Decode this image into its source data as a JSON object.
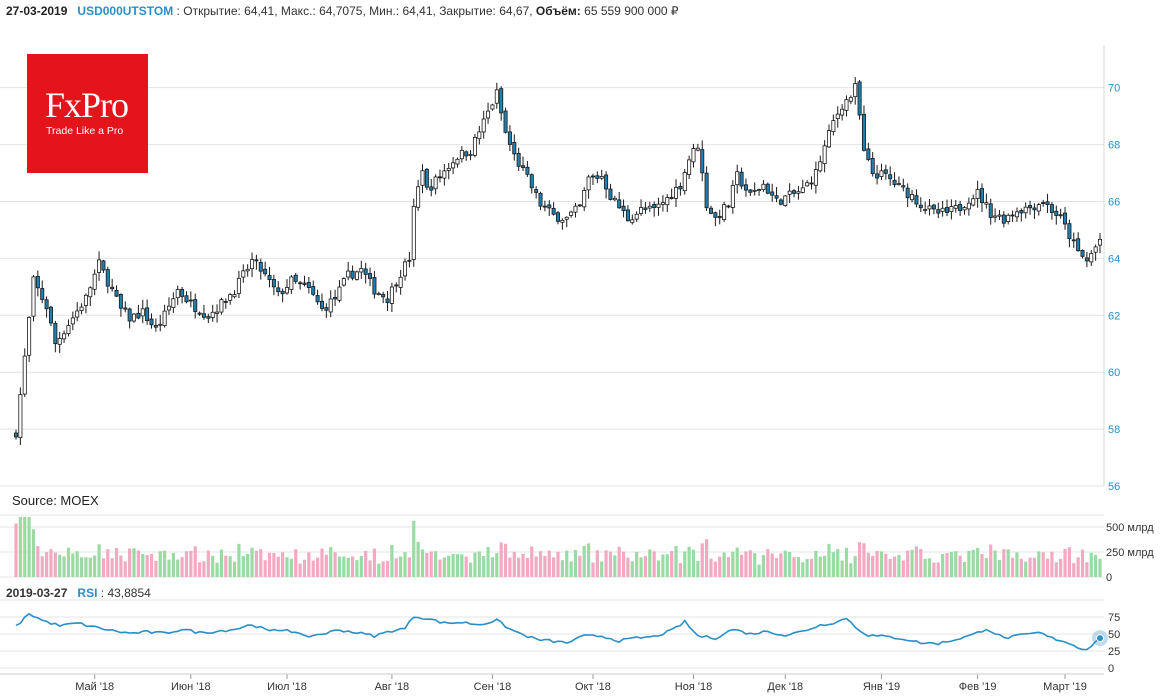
{
  "header": {
    "date": "27-03-2019",
    "ticker": "USD000UTSTOM",
    "sep": " : ",
    "open_label": "Открытие:",
    "open": "64,41",
    "high_label": "Макс.:",
    "high": "64,7075",
    "low_label": "Мин.:",
    "low": "64,41",
    "close_label": "Закрытие:",
    "close": "64,67",
    "volume_label": "Объём:",
    "volume": "65 559 900 000 ₽"
  },
  "logo": {
    "brand": "FxPro",
    "tagline": "Trade Like a Pro"
  },
  "source": "Source: MOEX",
  "rsi_header": {
    "date": "2019-03-27",
    "label": "RSI",
    "value": "43,8854"
  },
  "colors": {
    "up": "#ffffff",
    "down": "#1f7fb0",
    "vol_up": "#9adba4",
    "vol_down": "#f2a9c1",
    "rsi": "#2a8fc7",
    "grid": "#e4e4e4"
  },
  "chart_data": {
    "type": "candlestick",
    "price_axis": {
      "ylim": [
        56,
        71.5
      ],
      "ticks": [
        "56",
        "58",
        "60",
        "62",
        "64",
        "66",
        "68",
        "70"
      ]
    },
    "volume_axis": {
      "ylim": [
        0,
        620
      ],
      "ticks": [
        "0",
        "250 млрд",
        "500 млрд"
      ],
      "tick_values": [
        0,
        250,
        500
      ]
    },
    "rsi_axis": {
      "ylim": [
        0,
        100
      ],
      "ticks": [
        "0",
        "25",
        "50",
        "75"
      ],
      "tick_values": [
        0,
        25,
        50,
        75
      ]
    },
    "x_axis": {
      "n_days": 249,
      "labels": [
        "Май '18",
        "Июн '18",
        "Июл '18",
        "Авг '18",
        "Сен '18",
        "Окт '18",
        "Ноя '18",
        "Дек '18",
        "Янв '19",
        "Фев '19",
        "Март '19"
      ],
      "label_index": [
        18,
        40,
        62,
        86,
        109,
        132,
        155,
        176,
        198,
        220,
        240
      ]
    },
    "close_anchors": [
      [
        0,
        57.9
      ],
      [
        2,
        60.5
      ],
      [
        4,
        63.2
      ],
      [
        7,
        62.3
      ],
      [
        9,
        61.0
      ],
      [
        12,
        61.7
      ],
      [
        16,
        62.6
      ],
      [
        19,
        63.8
      ],
      [
        21,
        63.2
      ],
      [
        24,
        62.2
      ],
      [
        26,
        61.9
      ],
      [
        29,
        62.1
      ],
      [
        32,
        61.5
      ],
      [
        34,
        62.0
      ],
      [
        37,
        62.9
      ],
      [
        40,
        62.4
      ],
      [
        44,
        62.0
      ],
      [
        47,
        62.4
      ],
      [
        50,
        62.9
      ],
      [
        54,
        63.9
      ],
      [
        56,
        63.6
      ],
      [
        60,
        62.7
      ],
      [
        63,
        63.2
      ],
      [
        67,
        62.9
      ],
      [
        70,
        62.2
      ],
      [
        73,
        62.6
      ],
      [
        76,
        63.4
      ],
      [
        79,
        63.6
      ],
      [
        82,
        62.9
      ],
      [
        85,
        62.6
      ],
      [
        88,
        63.5
      ],
      [
        90,
        64.0
      ],
      [
        91,
        65.7
      ],
      [
        93,
        67.2
      ],
      [
        94,
        66.4
      ],
      [
        97,
        66.9
      ],
      [
        101,
        67.6
      ],
      [
        104,
        67.8
      ],
      [
        107,
        68.8
      ],
      [
        110,
        69.8
      ],
      [
        112,
        68.4
      ],
      [
        114,
        67.6
      ],
      [
        117,
        66.8
      ],
      [
        120,
        65.9
      ],
      [
        123,
        65.5
      ],
      [
        126,
        65.4
      ],
      [
        129,
        65.8
      ],
      [
        131,
        66.8
      ],
      [
        134,
        66.9
      ],
      [
        136,
        66.2
      ],
      [
        140,
        65.4
      ],
      [
        143,
        65.7
      ],
      [
        146,
        65.7
      ],
      [
        149,
        66.1
      ],
      [
        152,
        66.6
      ],
      [
        154,
        67.5
      ],
      [
        156,
        68.0
      ],
      [
        158,
        65.9
      ],
      [
        160,
        65.4
      ],
      [
        163,
        65.9
      ],
      [
        165,
        66.9
      ],
      [
        168,
        66.2
      ],
      [
        171,
        66.6
      ],
      [
        174,
        66.0
      ],
      [
        177,
        66.2
      ],
      [
        180,
        66.4
      ],
      [
        183,
        67.0
      ],
      [
        185,
        67.9
      ],
      [
        187,
        68.8
      ],
      [
        189,
        69.4
      ],
      [
        191,
        69.7
      ],
      [
        192,
        70.0
      ],
      [
        193,
        69.0
      ],
      [
        194,
        67.7
      ],
      [
        196,
        67.0
      ],
      [
        199,
        66.9
      ],
      [
        202,
        66.5
      ],
      [
        205,
        66.2
      ],
      [
        207,
        65.9
      ],
      [
        210,
        65.6
      ],
      [
        213,
        65.6
      ],
      [
        216,
        65.8
      ],
      [
        218,
        66.1
      ],
      [
        220,
        66.3
      ],
      [
        223,
        65.6
      ],
      [
        226,
        65.4
      ],
      [
        229,
        65.7
      ],
      [
        232,
        65.8
      ],
      [
        235,
        66.0
      ],
      [
        237,
        65.7
      ],
      [
        239,
        65.4
      ],
      [
        241,
        64.8
      ],
      [
        243,
        64.2
      ],
      [
        245,
        63.9
      ],
      [
        247,
        64.4
      ],
      [
        248,
        64.67
      ]
    ],
    "rsi_anchors": [
      [
        0,
        61
      ],
      [
        3,
        80
      ],
      [
        6,
        70
      ],
      [
        10,
        62
      ],
      [
        14,
        66
      ],
      [
        18,
        60
      ],
      [
        22,
        55
      ],
      [
        26,
        51
      ],
      [
        30,
        53
      ],
      [
        34,
        51
      ],
      [
        38,
        57
      ],
      [
        42,
        52
      ],
      [
        46,
        54
      ],
      [
        50,
        57
      ],
      [
        54,
        64
      ],
      [
        58,
        54
      ],
      [
        62,
        57
      ],
      [
        66,
        46
      ],
      [
        70,
        50
      ],
      [
        74,
        56
      ],
      [
        78,
        52
      ],
      [
        82,
        47
      ],
      [
        86,
        55
      ],
      [
        89,
        58
      ],
      [
        91,
        76
      ],
      [
        94,
        73
      ],
      [
        98,
        66
      ],
      [
        102,
        67
      ],
      [
        106,
        64
      ],
      [
        110,
        70
      ],
      [
        113,
        57
      ],
      [
        116,
        49
      ],
      [
        119,
        42
      ],
      [
        122,
        40
      ],
      [
        126,
        37
      ],
      [
        130,
        47
      ],
      [
        134,
        47
      ],
      [
        138,
        40
      ],
      [
        142,
        44
      ],
      [
        146,
        46
      ],
      [
        150,
        55
      ],
      [
        153,
        68
      ],
      [
        156,
        47
      ],
      [
        160,
        44
      ],
      [
        164,
        57
      ],
      [
        168,
        50
      ],
      [
        172,
        54
      ],
      [
        176,
        48
      ],
      [
        180,
        54
      ],
      [
        184,
        63
      ],
      [
        188,
        68
      ],
      [
        190,
        74
      ],
      [
        192,
        60
      ],
      [
        195,
        48
      ],
      [
        199,
        46
      ],
      [
        203,
        43
      ],
      [
        207,
        37
      ],
      [
        211,
        36
      ],
      [
        215,
        42
      ],
      [
        219,
        49
      ],
      [
        222,
        58
      ],
      [
        226,
        44
      ],
      [
        230,
        48
      ],
      [
        234,
        52
      ],
      [
        237,
        44
      ],
      [
        240,
        39
      ],
      [
        243,
        30
      ],
      [
        245,
        28
      ],
      [
        247,
        38
      ],
      [
        248,
        43.9
      ]
    ]
  }
}
